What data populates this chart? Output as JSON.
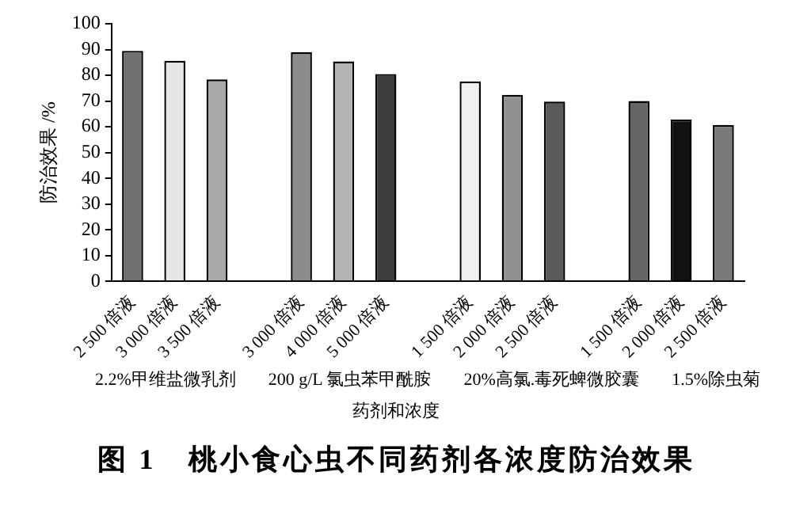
{
  "chart_data": {
    "type": "bar",
    "title": "图 1　桃小食心虫不同药剂各浓度防治效果",
    "xlabel": "药剂和浓度",
    "ylabel": "防治效果 /%",
    "categories": [
      "2 500 倍液",
      "3 000 倍液",
      "3 500 倍液",
      null,
      "3 000 倍液",
      "4 000 倍液",
      "5 000 倍液",
      null,
      "1 500 倍液",
      "2 000 倍液",
      "2 500 倍液",
      null,
      "1 500 倍液",
      "2 000 倍液",
      "2 500 倍液"
    ],
    "values": [
      89.5,
      85.6,
      78.4,
      null,
      88.9,
      85.4,
      80.5,
      null,
      77.6,
      72.4,
      69.8,
      null,
      70.0,
      62.8,
      60.7
    ],
    "colors": [
      "#707070",
      "#e6e6e6",
      "#a8a8a8",
      "#ffffff",
      "#8c8c8c",
      "#b4b4b4",
      "#3c3c3c",
      "#ffffff",
      "#f0f0f0",
      "#909090",
      "#5a5a5a",
      "#ffffff",
      "#666666",
      "#111111",
      "#7a7a7a"
    ],
    "ylim": [
      0,
      100
    ],
    "yticks": [
      0,
      10,
      20,
      30,
      40,
      50,
      60,
      70,
      80,
      90,
      100
    ],
    "grid": false,
    "legend": false,
    "annotations": [
      "2.2%甲维盐微乳剂",
      "200 g/L 氯虫苯甲酰胺",
      "20%高氯.毒死蜱微胶囊",
      "1.5%除虫菊"
    ]
  }
}
